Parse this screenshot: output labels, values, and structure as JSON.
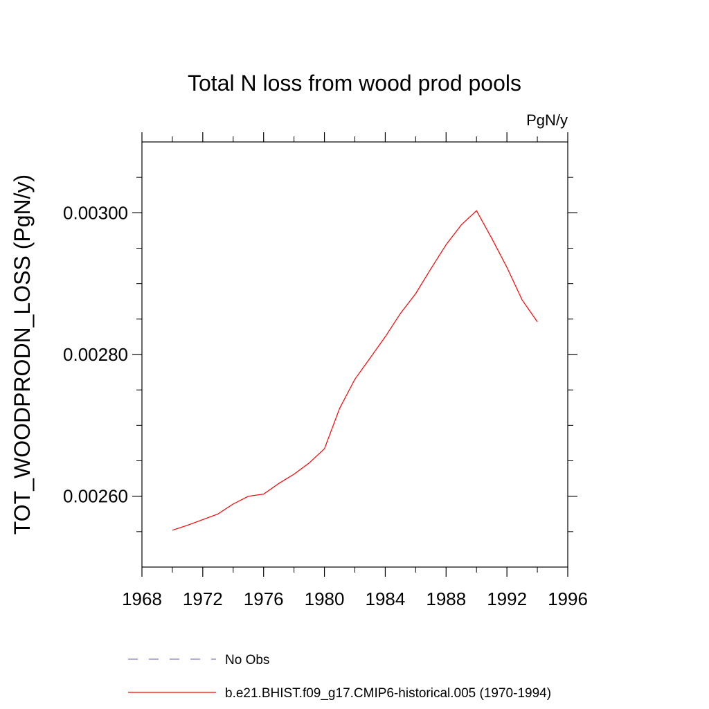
{
  "chart_data": {
    "type": "line",
    "title": "Total N loss from wood prod pools",
    "units": "PgN/y",
    "xlabel": "",
    "ylabel": "TOT_WOODPRODN_LOSS  (PgN/y)",
    "xlim": [
      1968,
      1996
    ],
    "ylim": [
      0.0025,
      0.0031
    ],
    "x_ticks": [
      1968,
      1972,
      1976,
      1980,
      1984,
      1988,
      1992,
      1996
    ],
    "x_tick_labels": [
      "1968",
      "1972",
      "1976",
      "1980",
      "1984",
      "1988",
      "1992",
      "1996"
    ],
    "x_minor_step": 2,
    "y_ticks": [
      0.0026,
      0.0028,
      0.003
    ],
    "y_tick_labels": [
      "0.00260",
      "0.00280",
      "0.00300"
    ],
    "y_minor_step": 5e-05,
    "grid": false,
    "legend_position": "bottom-left",
    "series": [
      {
        "name": "b.e21.BHIST.f09_g17.CMIP6-historical.005 (1970-1994)",
        "color": "#ff0000",
        "style": "solid",
        "x": [
          1970,
          1971,
          1972,
          1973,
          1974,
          1975,
          1976,
          1977,
          1978,
          1979,
          1980,
          1981,
          1982,
          1983,
          1984,
          1985,
          1986,
          1987,
          1988,
          1989,
          1990,
          1991,
          1992,
          1993,
          1994
        ],
        "values": [
          0.002552,
          0.002559,
          0.002567,
          0.002575,
          0.002589,
          0.0026,
          0.002603,
          0.002618,
          0.002631,
          0.002647,
          0.002667,
          0.002724,
          0.002765,
          0.002795,
          0.002825,
          0.002858,
          0.002886,
          0.002921,
          0.002955,
          0.002983,
          0.003003,
          0.002964,
          0.002923,
          0.002877,
          0.002846
        ]
      }
    ],
    "legend": [
      {
        "label": "No Obs",
        "color": "#8080c0",
        "style": "dashed"
      },
      {
        "label": "b.e21.BHIST.f09_g17.CMIP6-historical.005 (1970-1994)",
        "color": "#ff0000",
        "style": "solid"
      }
    ]
  }
}
